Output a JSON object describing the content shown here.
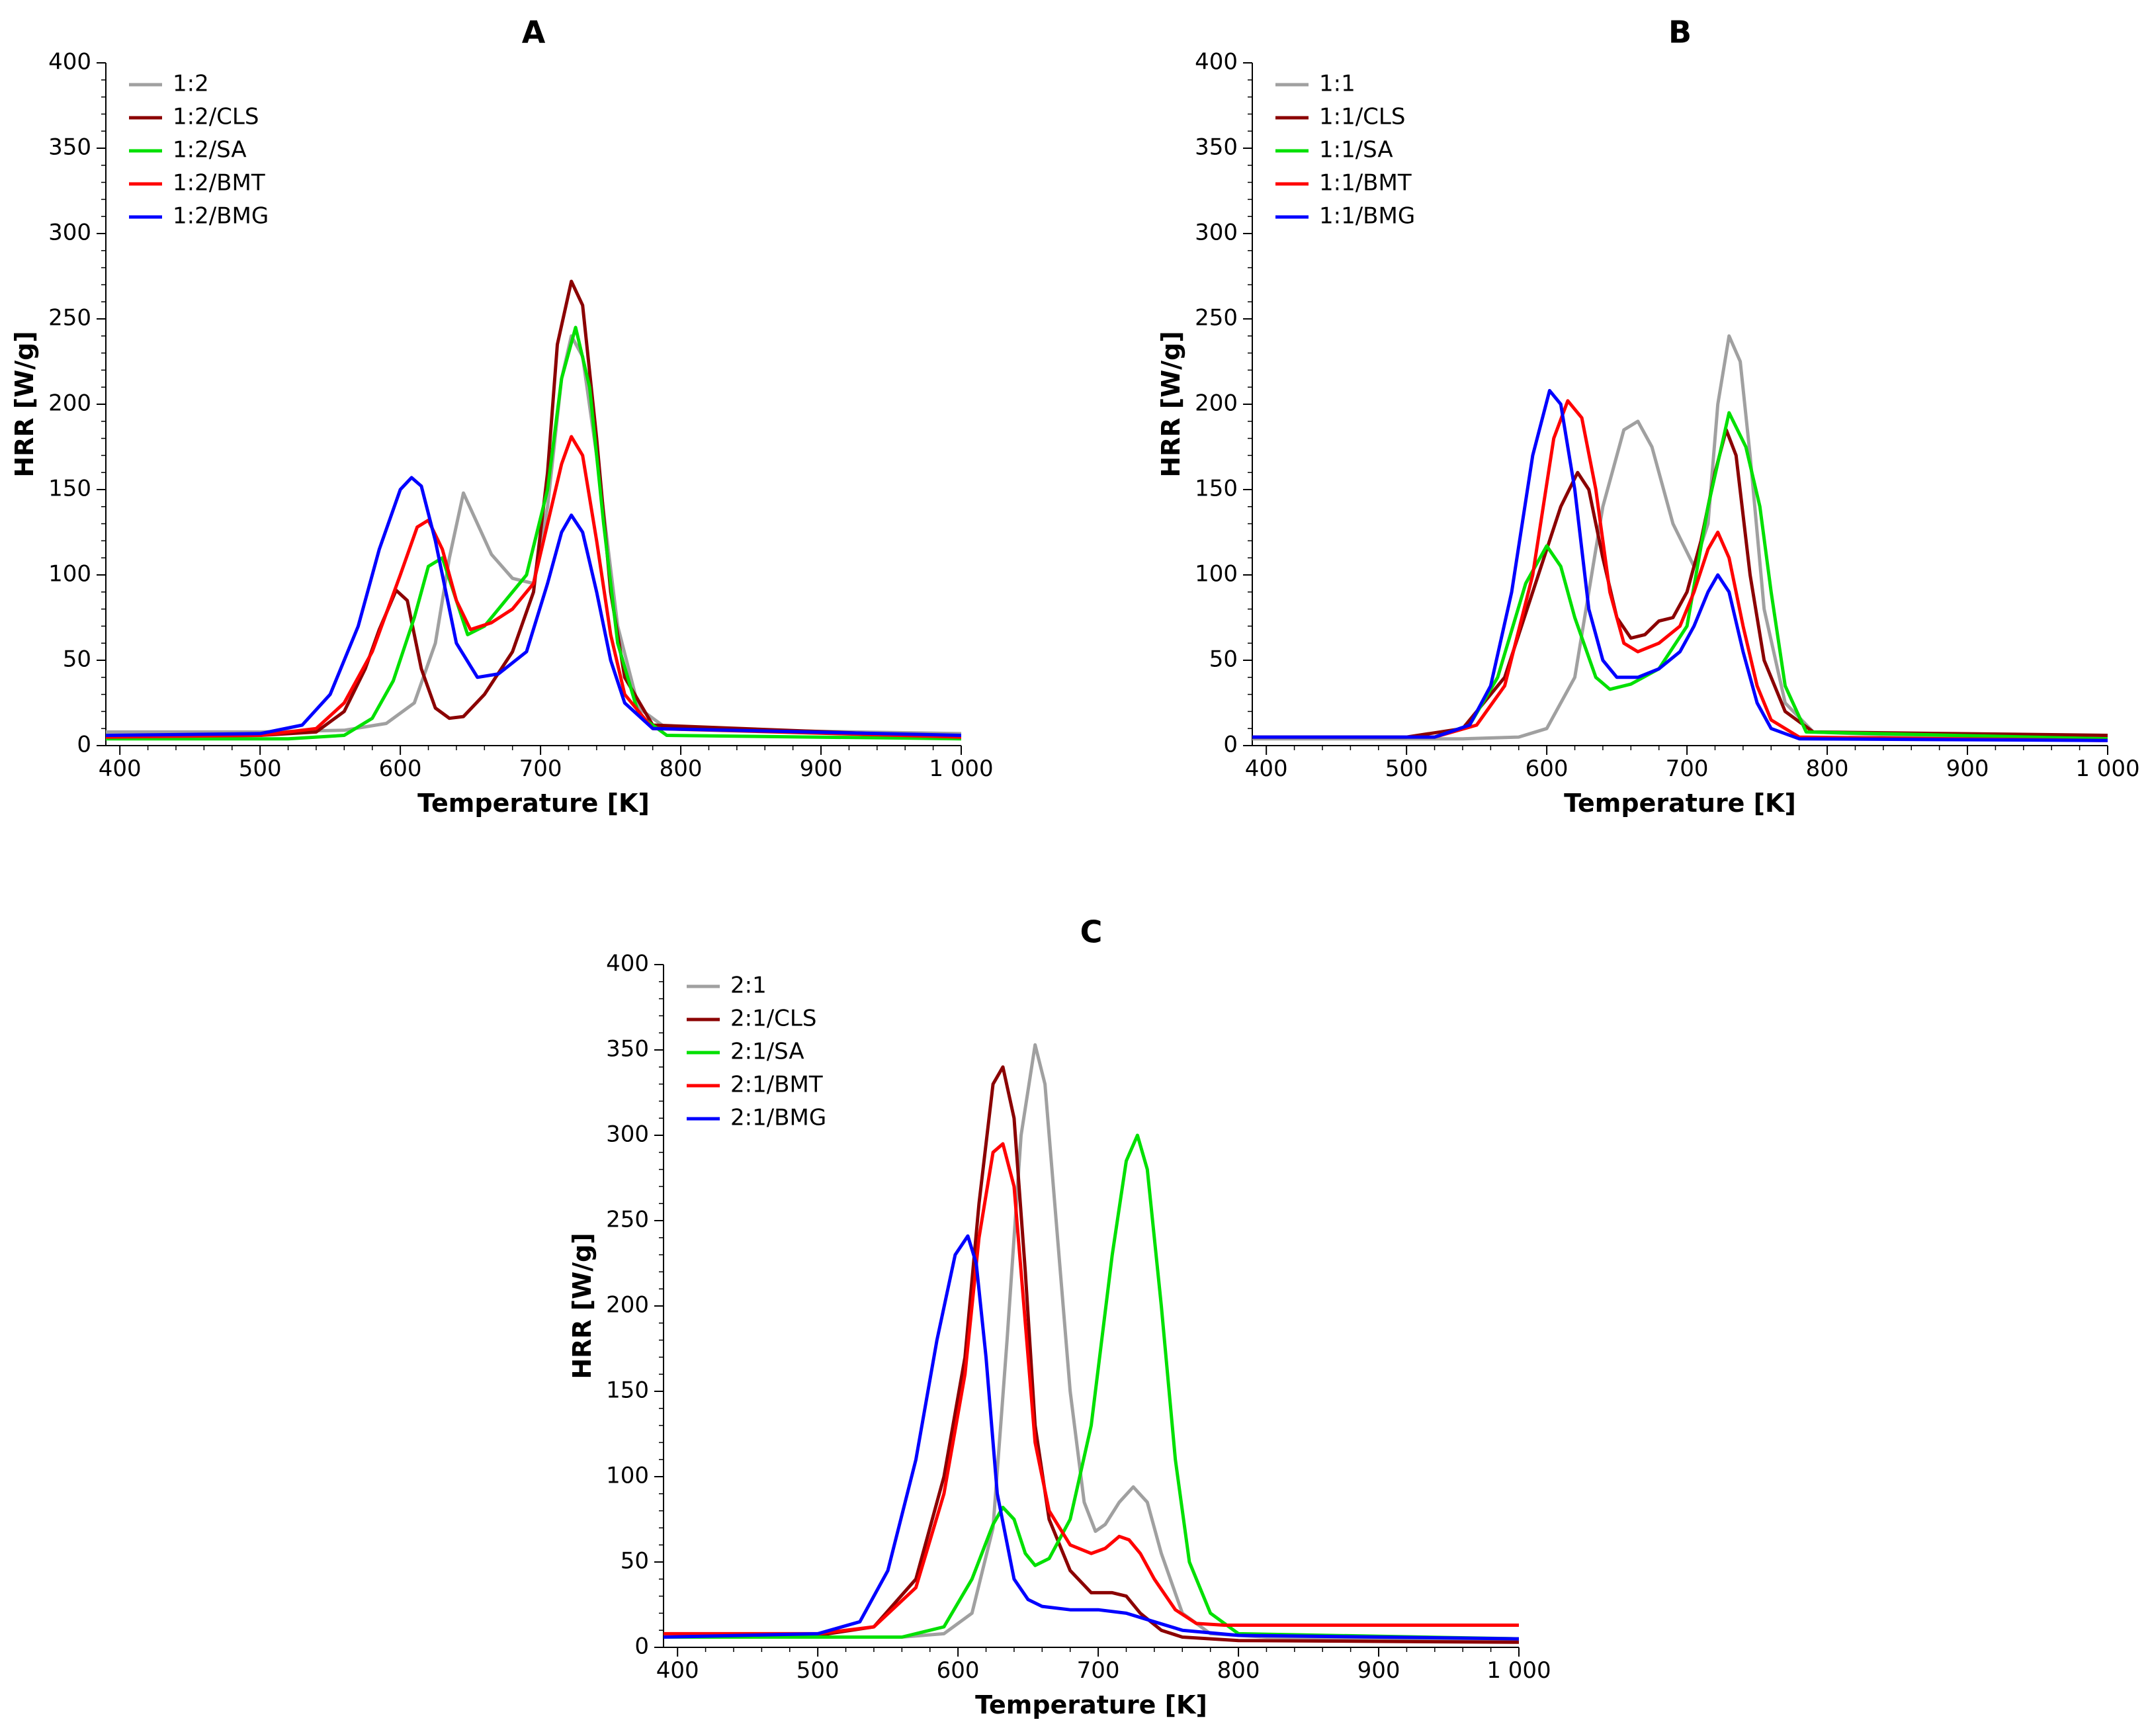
{
  "chart_data": [
    {
      "type": "line",
      "title": "A",
      "xlabel": "Temperature [K]",
      "ylabel": "HRR [W/g]",
      "xlim": [
        390,
        1000
      ],
      "ylim": [
        0,
        400
      ],
      "xticks": [
        400,
        500,
        600,
        700,
        800,
        900,
        1000
      ],
      "xtick_labels": [
        "400",
        "500",
        "600",
        "700",
        "800",
        "900",
        "1 000"
      ],
      "yticks": [
        0,
        50,
        100,
        150,
        200,
        250,
        300,
        350,
        400
      ],
      "ytick_labels": [
        "0",
        "50",
        "100",
        "150",
        "200",
        "250",
        "300",
        "350",
        "400"
      ],
      "legend_position": "top-left",
      "series": [
        {
          "name": "1:2",
          "color": "#a0a0a0",
          "x": [
            390,
            500,
            560,
            590,
            610,
            625,
            635,
            645,
            655,
            665,
            680,
            695,
            705,
            715,
            722,
            730,
            740,
            755,
            770,
            790,
            850,
            1000
          ],
          "values": [
            8,
            8,
            9,
            13,
            25,
            60,
            110,
            148,
            130,
            112,
            98,
            95,
            140,
            215,
            240,
            228,
            170,
            70,
            22,
            10,
            9,
            7
          ]
        },
        {
          "name": "1:2/CLS",
          "color": "#8b0000",
          "x": [
            390,
            500,
            540,
            560,
            575,
            585,
            597,
            605,
            615,
            625,
            635,
            645,
            660,
            680,
            695,
            705,
            712,
            722,
            730,
            740,
            750,
            760,
            780,
            1000
          ],
          "values": [
            5,
            6,
            8,
            20,
            45,
            68,
            91,
            85,
            45,
            22,
            16,
            17,
            30,
            55,
            90,
            160,
            235,
            272,
            258,
            180,
            90,
            40,
            12,
            5
          ]
        },
        {
          "name": "1:2/SA",
          "color": "#00e000",
          "x": [
            390,
            520,
            560,
            580,
            595,
            610,
            620,
            630,
            640,
            648,
            660,
            675,
            690,
            705,
            715,
            725,
            735,
            745,
            755,
            770,
            790,
            1000
          ],
          "values": [
            4,
            4,
            6,
            16,
            38,
            75,
            105,
            110,
            85,
            65,
            70,
            85,
            100,
            150,
            215,
            245,
            210,
            130,
            60,
            18,
            6,
            4
          ]
        },
        {
          "name": "1:2/BMT",
          "color": "#ff0000",
          "x": [
            390,
            500,
            540,
            560,
            580,
            600,
            612,
            620,
            630,
            640,
            650,
            665,
            680,
            695,
            705,
            715,
            722,
            730,
            740,
            750,
            760,
            780,
            1000
          ],
          "values": [
            5,
            6,
            10,
            25,
            55,
            100,
            128,
            132,
            115,
            85,
            68,
            72,
            80,
            95,
            130,
            165,
            181,
            170,
            120,
            65,
            30,
            10,
            5
          ]
        },
        {
          "name": "1:2/BMG",
          "color": "#0000ff",
          "x": [
            390,
            500,
            530,
            550,
            570,
            585,
            600,
            608,
            615,
            625,
            640,
            655,
            670,
            690,
            705,
            715,
            722,
            730,
            740,
            750,
            760,
            780,
            1000
          ],
          "values": [
            6,
            7,
            12,
            30,
            70,
            115,
            150,
            157,
            152,
            120,
            60,
            40,
            42,
            55,
            95,
            125,
            135,
            125,
            90,
            50,
            25,
            10,
            6
          ]
        }
      ]
    },
    {
      "type": "line",
      "title": "B",
      "xlabel": "Temperature [K]",
      "ylabel": "HRR [W/g]",
      "xlim": [
        390,
        1000
      ],
      "ylim": [
        0,
        400
      ],
      "xticks": [
        400,
        500,
        600,
        700,
        800,
        900,
        1000
      ],
      "xtick_labels": [
        "400",
        "500",
        "600",
        "700",
        "800",
        "900",
        "1 000"
      ],
      "yticks": [
        0,
        50,
        100,
        150,
        200,
        250,
        300,
        350,
        400
      ],
      "ytick_labels": [
        "0",
        "50",
        "100",
        "150",
        "200",
        "250",
        "300",
        "350",
        "400"
      ],
      "legend_position": "top-left",
      "series": [
        {
          "name": "1:1",
          "color": "#a0a0a0",
          "x": [
            390,
            540,
            580,
            600,
            620,
            640,
            655,
            665,
            675,
            690,
            705,
            715,
            722,
            730,
            738,
            745,
            755,
            770,
            790,
            850,
            1000
          ],
          "values": [
            4,
            4,
            5,
            10,
            40,
            140,
            185,
            190,
            175,
            130,
            105,
            130,
            200,
            240,
            225,
            170,
            80,
            25,
            8,
            6,
            5
          ]
        },
        {
          "name": "1:1/CLS",
          "color": "#8b0000",
          "x": [
            390,
            500,
            540,
            570,
            590,
            610,
            622,
            630,
            640,
            650,
            660,
            670,
            680,
            690,
            700,
            710,
            720,
            728,
            735,
            745,
            755,
            770,
            790,
            1000
          ],
          "values": [
            5,
            5,
            10,
            40,
            90,
            140,
            160,
            150,
            110,
            75,
            63,
            65,
            73,
            75,
            90,
            120,
            160,
            185,
            170,
            100,
            50,
            20,
            8,
            6
          ]
        },
        {
          "name": "1:1/SA",
          "color": "#00e000",
          "x": [
            390,
            520,
            545,
            565,
            585,
            600,
            610,
            620,
            635,
            645,
            660,
            680,
            700,
            715,
            730,
            742,
            752,
            760,
            770,
            785,
            1000
          ],
          "values": [
            5,
            5,
            12,
            40,
            95,
            117,
            105,
            75,
            40,
            33,
            36,
            45,
            70,
            140,
            195,
            175,
            140,
            90,
            35,
            8,
            4
          ]
        },
        {
          "name": "1:1/BMT",
          "color": "#ff0000",
          "x": [
            390,
            520,
            550,
            570,
            590,
            605,
            615,
            625,
            635,
            645,
            655,
            665,
            680,
            695,
            705,
            715,
            722,
            730,
            740,
            750,
            760,
            780,
            1000
          ],
          "values": [
            5,
            5,
            12,
            35,
            100,
            180,
            202,
            192,
            150,
            90,
            60,
            55,
            60,
            70,
            90,
            115,
            125,
            110,
            70,
            35,
            15,
            5,
            3
          ]
        },
        {
          "name": "1:1/BMG",
          "color": "#0000ff",
          "x": [
            390,
            520,
            545,
            560,
            575,
            590,
            602,
            610,
            620,
            630,
            640,
            650,
            665,
            680,
            695,
            705,
            715,
            722,
            730,
            740,
            750,
            760,
            780,
            1000
          ],
          "values": [
            5,
            5,
            12,
            35,
            90,
            170,
            208,
            200,
            150,
            80,
            50,
            40,
            40,
            45,
            55,
            70,
            90,
            100,
            90,
            55,
            25,
            10,
            4,
            3
          ]
        }
      ]
    },
    {
      "type": "line",
      "title": "C",
      "xlabel": "Temperature [K]",
      "ylabel": "HRR [W/g]",
      "xlim": [
        390,
        1000
      ],
      "ylim": [
        0,
        400
      ],
      "xticks": [
        400,
        500,
        600,
        700,
        800,
        900,
        1000
      ],
      "xtick_labels": [
        "400",
        "500",
        "600",
        "700",
        "800",
        "900",
        "1 000"
      ],
      "yticks": [
        0,
        50,
        100,
        150,
        200,
        250,
        300,
        350,
        400
      ],
      "ytick_labels": [
        "0",
        "50",
        "100",
        "150",
        "200",
        "250",
        "300",
        "350",
        "400"
      ],
      "legend_position": "top-left",
      "series": [
        {
          "name": "2:1",
          "color": "#a0a0a0",
          "x": [
            390,
            560,
            590,
            610,
            625,
            635,
            645,
            655,
            662,
            670,
            680,
            690,
            698,
            705,
            715,
            725,
            735,
            745,
            760,
            780,
            820,
            1000
          ],
          "values": [
            6,
            6,
            8,
            20,
            70,
            180,
            300,
            353,
            330,
            250,
            150,
            85,
            68,
            72,
            85,
            94,
            85,
            55,
            20,
            8,
            6,
            4
          ]
        },
        {
          "name": "2:1/CLS",
          "color": "#8b0000",
          "x": [
            390,
            500,
            540,
            570,
            590,
            605,
            615,
            625,
            632,
            640,
            648,
            655,
            665,
            680,
            695,
            710,
            720,
            730,
            745,
            760,
            800,
            1000
          ],
          "values": [
            6,
            7,
            12,
            40,
            100,
            170,
            260,
            330,
            340,
            310,
            220,
            130,
            75,
            45,
            32,
            32,
            30,
            20,
            10,
            6,
            4,
            3
          ]
        },
        {
          "name": "2:1/SA",
          "color": "#00e000",
          "x": [
            390,
            560,
            590,
            610,
            625,
            632,
            640,
            648,
            655,
            665,
            680,
            695,
            710,
            720,
            728,
            735,
            745,
            755,
            765,
            780,
            800,
            1000
          ],
          "values": [
            6,
            6,
            12,
            40,
            72,
            82,
            75,
            55,
            48,
            52,
            75,
            130,
            230,
            285,
            300,
            280,
            200,
            110,
            50,
            20,
            8,
            5
          ]
        },
        {
          "name": "2:1/BMT",
          "color": "#ff0000",
          "x": [
            390,
            500,
            540,
            570,
            590,
            605,
            615,
            625,
            632,
            640,
            648,
            655,
            665,
            680,
            695,
            705,
            715,
            722,
            730,
            740,
            755,
            770,
            790,
            850,
            1000
          ],
          "values": [
            8,
            8,
            12,
            35,
            90,
            160,
            240,
            290,
            295,
            270,
            190,
            120,
            80,
            60,
            55,
            58,
            65,
            63,
            55,
            40,
            22,
            14,
            13,
            13,
            13
          ]
        },
        {
          "name": "2:1/BMG",
          "color": "#0000ff",
          "x": [
            390,
            500,
            530,
            550,
            570,
            585,
            598,
            607,
            613,
            620,
            628,
            640,
            650,
            660,
            680,
            700,
            720,
            740,
            760,
            800,
            1000
          ],
          "values": [
            6,
            8,
            15,
            45,
            110,
            180,
            230,
            241,
            225,
            170,
            90,
            40,
            28,
            24,
            22,
            22,
            20,
            15,
            10,
            7,
            5
          ]
        }
      ]
    }
  ]
}
